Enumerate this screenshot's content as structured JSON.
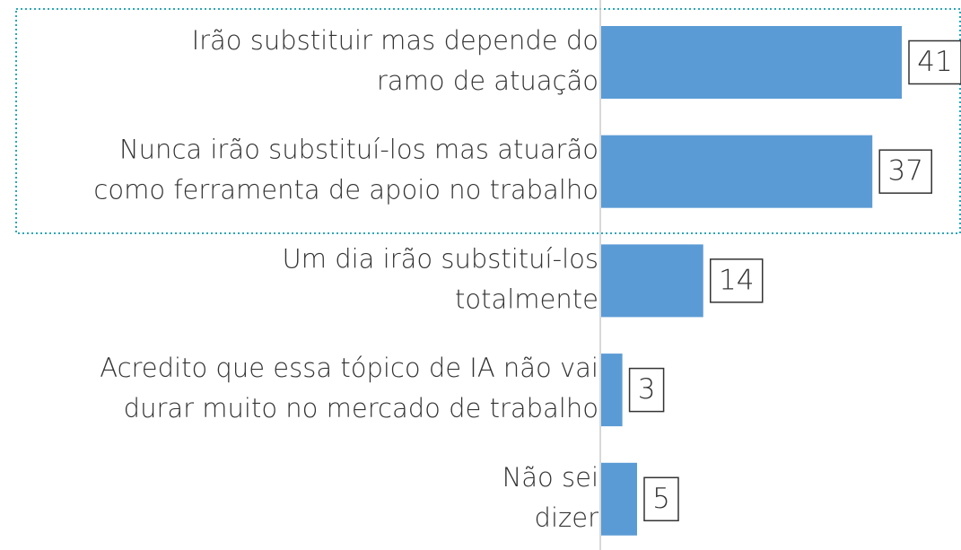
{
  "chart_data": {
    "type": "bar",
    "orientation": "horizontal",
    "categories": [
      [
        "Irão substituir mas depende do",
        "ramo de atuação"
      ],
      [
        "Nunca irão substituí-los mas atuarão",
        "como ferramenta de apoio no trabalho"
      ],
      [
        "Um dia irão substituí-los",
        "totalmente"
      ],
      [
        "Acredito que essa tópico de IA não vai",
        "durar muito no mercado de trabalho"
      ],
      [
        "Não sei",
        "dizer"
      ]
    ],
    "values": [
      41,
      37,
      14,
      3,
      5
    ],
    "color": "#5b9bd5"
  }
}
